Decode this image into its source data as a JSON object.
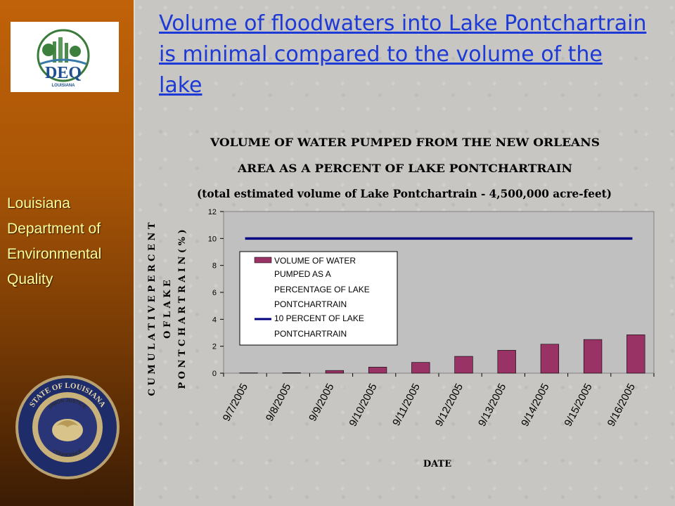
{
  "slide": {
    "headline": "Volume of floodwaters into Lake Pontchartrain is minimal compared to the volume of the lake"
  },
  "sidebar": {
    "org_lines": [
      "Louisiana",
      "Department of",
      "Environmental",
      "Quality"
    ],
    "logo": {
      "text": "DEQ",
      "subtext": "LOUISIANA"
    },
    "seal": {
      "top_text": "STATE OF LOUISIANA",
      "motto_top": "UNION  JUSTICE",
      "motto_bottom": "CONFIDENCE"
    }
  },
  "colors": {
    "bar": "#993366",
    "line": "#000080",
    "headline": "#1e3ad6",
    "org_text": "#ffff9a"
  },
  "chart_data": {
    "type": "bar",
    "title_lines": [
      "VOLUME OF WATER PUMPED FROM THE NEW ORLEANS",
      "AREA AS A PERCENT OF LAKE PONTCHARTRAIN",
      "(total estimated volume of Lake Pontchartrain - 4,500,000 acre-feet)"
    ],
    "ylabel_lines": [
      "C U M U L A T I V E  P E R C E N T",
      "O F  L A K E",
      "P O N T C H A R T R A I N  ( % )"
    ],
    "xlabel": "DATE",
    "categories": [
      "9/7/2005",
      "9/8/2005",
      "9/9/2005",
      "9/10/2005",
      "9/11/2005",
      "9/12/2005",
      "9/13/2005",
      "9/14/2005",
      "9/15/2005",
      "9/16/2005"
    ],
    "ylim": [
      0,
      12
    ],
    "yticks": [
      0,
      2,
      4,
      6,
      8,
      10,
      12
    ],
    "series": [
      {
        "name": "VOLUME OF WATER PUMPED AS A PERCENTAGE OF LAKE PONTCHARTRAIN",
        "kind": "bar",
        "values": [
          0.02,
          0.03,
          0.2,
          0.45,
          0.8,
          1.25,
          1.7,
          2.15,
          2.5,
          2.85
        ]
      },
      {
        "name": "10 PERCENT OF LAKE PONTCHARTRAIN",
        "kind": "line",
        "values": [
          10,
          10,
          10,
          10,
          10,
          10,
          10,
          10,
          10,
          10
        ]
      }
    ],
    "legend": {
      "placement": "inside-left",
      "bar_lines": [
        "VOLUME OF WATER",
        "PUMPED AS A",
        "PERCENTAGE OF LAKE",
        "PONTCHARTRAIN"
      ],
      "line_lines": [
        "10 PERCENT OF LAKE",
        "PONTCHARTRAIN"
      ]
    },
    "grid": false
  }
}
